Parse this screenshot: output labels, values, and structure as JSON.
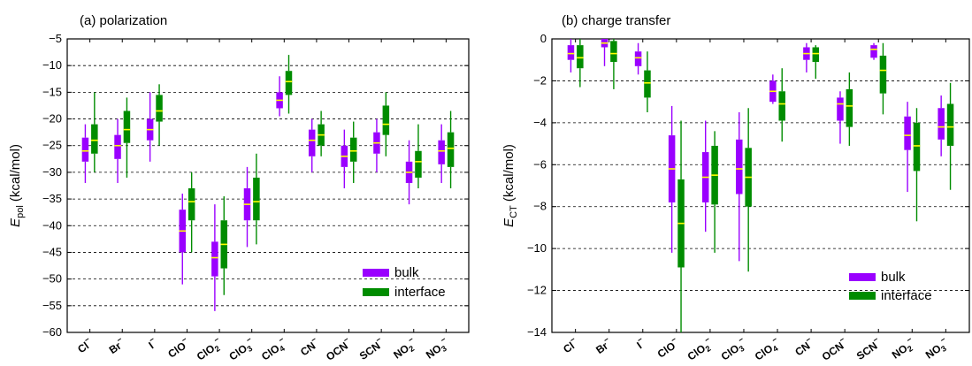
{
  "chart_data": [
    {
      "type": "box",
      "title": "(a) polarization",
      "ylabel_main": "E",
      "ylabel_sub": "pol",
      "ylabel_unit": "(kcal/mol)",
      "ylim": [
        -60,
        -5
      ],
      "yticks": [
        -5,
        -10,
        -15,
        -20,
        -25,
        -30,
        -35,
        -40,
        -45,
        -50,
        -55,
        -60
      ],
      "grid": "dashed-horizontal",
      "legend_position": "bottom-right",
      "categories": [
        {
          "base": "Cl",
          "sub": "",
          "sup": "−"
        },
        {
          "base": "Br",
          "sub": "",
          "sup": "−"
        },
        {
          "base": "I",
          "sub": "",
          "sup": "−"
        },
        {
          "base": "ClO",
          "sub": "",
          "sup": "−"
        },
        {
          "base": "ClO",
          "sub": "2",
          "sup": "−"
        },
        {
          "base": "ClO",
          "sub": "3",
          "sup": "−"
        },
        {
          "base": "ClO",
          "sub": "4",
          "sup": "−"
        },
        {
          "base": "CN",
          "sub": "",
          "sup": "−"
        },
        {
          "base": "OCN",
          "sub": "",
          "sup": "−"
        },
        {
          "base": "SCN",
          "sub": "",
          "sup": "−"
        },
        {
          "base": "NO",
          "sub": "2",
          "sup": "−"
        },
        {
          "base": "NO",
          "sub": "3",
          "sup": "−"
        }
      ],
      "series": [
        {
          "name": "bulk",
          "color": "#9a00ff",
          "boxes": [
            {
              "min": -32,
              "q1": -28,
              "median": -26,
              "q3": -23.5,
              "max": -21
            },
            {
              "min": -32,
              "q1": -27.5,
              "median": -25,
              "q3": -23,
              "max": -20
            },
            {
              "min": -28,
              "q1": -24,
              "median": -22,
              "q3": -20,
              "max": -15
            },
            {
              "min": -51,
              "q1": -45,
              "median": -41,
              "q3": -37,
              "max": -34
            },
            {
              "min": -56,
              "q1": -49.5,
              "median": -46,
              "q3": -43,
              "max": -36
            },
            {
              "min": -44,
              "q1": -39,
              "median": -36,
              "q3": -33,
              "max": -29
            },
            {
              "min": -19.5,
              "q1": -18,
              "median": -16.5,
              "q3": -15,
              "max": -12
            },
            {
              "min": -30,
              "q1": -27,
              "median": -24,
              "q3": -22,
              "max": -20
            },
            {
              "min": -33,
              "q1": -29,
              "median": -27,
              "q3": -25,
              "max": -22
            },
            {
              "min": -30,
              "q1": -26.5,
              "median": -24.5,
              "q3": -22.5,
              "max": -20
            },
            {
              "min": -36,
              "q1": -32,
              "median": -30,
              "q3": -28,
              "max": -24
            },
            {
              "min": -32,
              "q1": -28.5,
              "median": -26,
              "q3": -24,
              "max": -21
            }
          ]
        },
        {
          "name": "interface",
          "color": "#008c00",
          "boxes": [
            {
              "min": -30,
              "q1": -26.5,
              "median": -24,
              "q3": -21,
              "max": -15
            },
            {
              "min": -31,
              "q1": -24.5,
              "median": -22,
              "q3": -18.5,
              "max": -16
            },
            {
              "min": -25,
              "q1": -20.5,
              "median": -18.5,
              "q3": -15.5,
              "max": -13.5
            },
            {
              "min": -45,
              "q1": -39,
              "median": -35.5,
              "q3": -33,
              "max": -30
            },
            {
              "min": -53,
              "q1": -48,
              "median": -43.5,
              "q3": -39,
              "max": -34.5
            },
            {
              "min": -43.5,
              "q1": -39,
              "median": -35.5,
              "q3": -31,
              "max": -26.5
            },
            {
              "min": -19,
              "q1": -15.5,
              "median": -13,
              "q3": -11,
              "max": -8
            },
            {
              "min": -27,
              "q1": -25,
              "median": -23,
              "q3": -21,
              "max": -18.5
            },
            {
              "min": -32,
              "q1": -28,
              "median": -26,
              "q3": -23.5,
              "max": -20.5
            },
            {
              "min": -27,
              "q1": -23,
              "median": -21,
              "q3": -17.5,
              "max": -15
            },
            {
              "min": -33,
              "q1": -31,
              "median": -28,
              "q3": -26,
              "max": -21
            },
            {
              "min": -33,
              "q1": -29,
              "median": -25.5,
              "q3": -22.5,
              "max": -18.5
            }
          ]
        }
      ]
    },
    {
      "type": "box",
      "title": "(b) charge transfer",
      "ylabel_main": "E",
      "ylabel_sub": "CT",
      "ylabel_unit": "(kcal/mol)",
      "ylim": [
        -14,
        0
      ],
      "yticks": [
        0,
        -2,
        -4,
        -6,
        -8,
        -10,
        -12,
        -14
      ],
      "grid": "dashed-horizontal",
      "legend_position": "bottom-right",
      "categories": [
        {
          "base": "Cl",
          "sub": "",
          "sup": "−"
        },
        {
          "base": "Br",
          "sub": "",
          "sup": "−"
        },
        {
          "base": "I",
          "sub": "",
          "sup": "−"
        },
        {
          "base": "ClO",
          "sub": "",
          "sup": "−"
        },
        {
          "base": "ClO",
          "sub": "2",
          "sup": "−"
        },
        {
          "base": "ClO",
          "sub": "3",
          "sup": "−"
        },
        {
          "base": "ClO",
          "sub": "4",
          "sup": "−"
        },
        {
          "base": "CN",
          "sub": "",
          "sup": "−"
        },
        {
          "base": "OCN",
          "sub": "",
          "sup": "−"
        },
        {
          "base": "SCN",
          "sub": "",
          "sup": "−"
        },
        {
          "base": "NO",
          "sub": "2",
          "sup": "−"
        },
        {
          "base": "NO",
          "sub": "3",
          "sup": "−"
        }
      ],
      "series": [
        {
          "name": "bulk",
          "color": "#9a00ff",
          "boxes": [
            {
              "min": -1.6,
              "q1": -1.0,
              "median": -0.7,
              "q3": -0.3,
              "max": 0
            },
            {
              "min": -1.3,
              "q1": -0.4,
              "median": -0.2,
              "q3": 0,
              "max": 0
            },
            {
              "min": -1.7,
              "q1": -1.3,
              "median": -0.9,
              "q3": -0.6,
              "max": -0.2
            },
            {
              "min": -10.2,
              "q1": -7.8,
              "median": -6.2,
              "q3": -4.6,
              "max": -3.2
            },
            {
              "min": -9.2,
              "q1": -7.8,
              "median": -6.6,
              "q3": -5.4,
              "max": -3.9
            },
            {
              "min": -10.6,
              "q1": -7.4,
              "median": -6.2,
              "q3": -4.8,
              "max": -3.5
            },
            {
              "min": -3.1,
              "q1": -3.0,
              "median": -2.5,
              "q3": -2.0,
              "max": -1.7
            },
            {
              "min": -1.6,
              "q1": -1.0,
              "median": -0.7,
              "q3": -0.4,
              "max": -0.2
            },
            {
              "min": -5.0,
              "q1": -3.9,
              "median": -3.1,
              "q3": -2.8,
              "max": -2.5
            },
            {
              "min": -1.0,
              "q1": -0.9,
              "median": -0.5,
              "q3": -0.3,
              "max": -0.2
            },
            {
              "min": -7.3,
              "q1": -5.3,
              "median": -4.6,
              "q3": -3.7,
              "max": -3.0
            },
            {
              "min": -5.6,
              "q1": -4.8,
              "median": -4.2,
              "q3": -3.3,
              "max": -2.7
            }
          ]
        },
        {
          "name": "interface",
          "color": "#008c00",
          "boxes": [
            {
              "min": -2.3,
              "q1": -1.4,
              "median": -0.9,
              "q3": -0.3,
              "max": 0
            },
            {
              "min": -2.4,
              "q1": -1.1,
              "median": -0.7,
              "q3": -0.1,
              "max": 0
            },
            {
              "min": -3.5,
              "q1": -2.8,
              "median": -2.1,
              "q3": -1.5,
              "max": -0.6
            },
            {
              "min": -14,
              "q1": -10.9,
              "median": -8.8,
              "q3": -6.7,
              "max": -3.9
            },
            {
              "min": -10.2,
              "q1": -7.9,
              "median": -6.5,
              "q3": -5.1,
              "max": -4.4
            },
            {
              "min": -11.1,
              "q1": -8.0,
              "median": -6.6,
              "q3": -5.2,
              "max": -3.3
            },
            {
              "min": -4.9,
              "q1": -3.9,
              "median": -3.1,
              "q3": -2.5,
              "max": -1.4
            },
            {
              "min": -1.9,
              "q1": -1.1,
              "median": -0.7,
              "q3": -0.4,
              "max": -0.3
            },
            {
              "min": -5.1,
              "q1": -4.2,
              "median": -3.2,
              "q3": -2.4,
              "max": -1.6
            },
            {
              "min": -3.6,
              "q1": -2.6,
              "median": -1.5,
              "q3": -0.8,
              "max": -0.2
            },
            {
              "min": -8.7,
              "q1": -6.3,
              "median": -5.1,
              "q3": -4.0,
              "max": -3.3
            },
            {
              "min": -7.2,
              "q1": -5.1,
              "median": -4.2,
              "q3": -3.1,
              "max": -2.1
            }
          ]
        }
      ]
    }
  ]
}
